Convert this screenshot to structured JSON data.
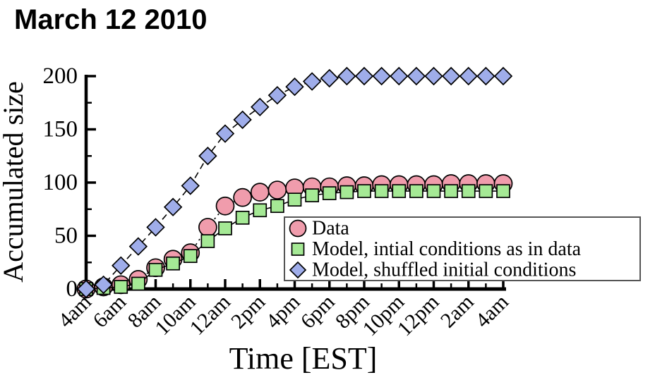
{
  "chart_data": {
    "type": "line",
    "title": "March 12 2010",
    "xlabel": "Time [EST]",
    "ylabel": "Accumulated size",
    "ylim": [
      0,
      200
    ],
    "y_major_ticks": [
      0,
      50,
      100,
      150,
      200
    ],
    "y_minor_ticks": [
      25,
      75,
      125,
      175
    ],
    "x_hours": [
      0,
      1,
      2,
      3,
      4,
      5,
      6,
      7,
      8,
      9,
      10,
      11,
      12,
      13,
      14,
      15,
      16,
      17,
      18,
      19,
      20,
      21,
      22,
      23,
      24
    ],
    "x_major_tick_hours": [
      0,
      2,
      4,
      6,
      8,
      10,
      12,
      14,
      16,
      18,
      20,
      22,
      24
    ],
    "x_minor_tick_hours": [
      1,
      3,
      5,
      7,
      9,
      11,
      13,
      15,
      17,
      19,
      21,
      23
    ],
    "x_tick_labels": [
      "4am",
      "6am",
      "8am",
      "10am",
      "12am",
      "2pm",
      "4pm",
      "6pm",
      "8pm",
      "10pm",
      "12pm",
      "2am",
      "4am"
    ],
    "grid": false,
    "legend_position": "bottom-right-inside",
    "series": [
      {
        "name": "Data",
        "marker": "circle",
        "color": "#F09CAC",
        "line_style": "dotted",
        "values": [
          0,
          2,
          4,
          9,
          20,
          28,
          34,
          58,
          78,
          86,
          91,
          93,
          95,
          96,
          96,
          97,
          97,
          98,
          98,
          98,
          98,
          99,
          99,
          99,
          99
        ]
      },
      {
        "name": "Model, intial conditions as in data",
        "marker": "square",
        "color": "#A5E995",
        "line_style": "solid",
        "values": [
          0,
          1,
          2,
          5,
          18,
          24,
          31,
          45,
          57,
          67,
          74,
          78,
          84,
          88,
          90,
          91,
          92,
          92,
          92,
          92,
          92,
          92,
          92,
          92,
          92
        ]
      },
      {
        "name": "Model, shuffled initial conditions",
        "marker": "diamond",
        "color": "#9FADEA",
        "line_style": "dashed",
        "values": [
          0,
          4,
          22,
          40,
          58,
          77,
          97,
          125,
          146,
          159,
          171,
          182,
          190,
          195,
          198,
          200,
          200,
          200,
          200,
          200,
          200,
          200,
          200,
          200,
          200
        ]
      }
    ],
    "axis_color": "#000000",
    "legend_border_color": "#555555",
    "background_color": "#ffffff"
  }
}
